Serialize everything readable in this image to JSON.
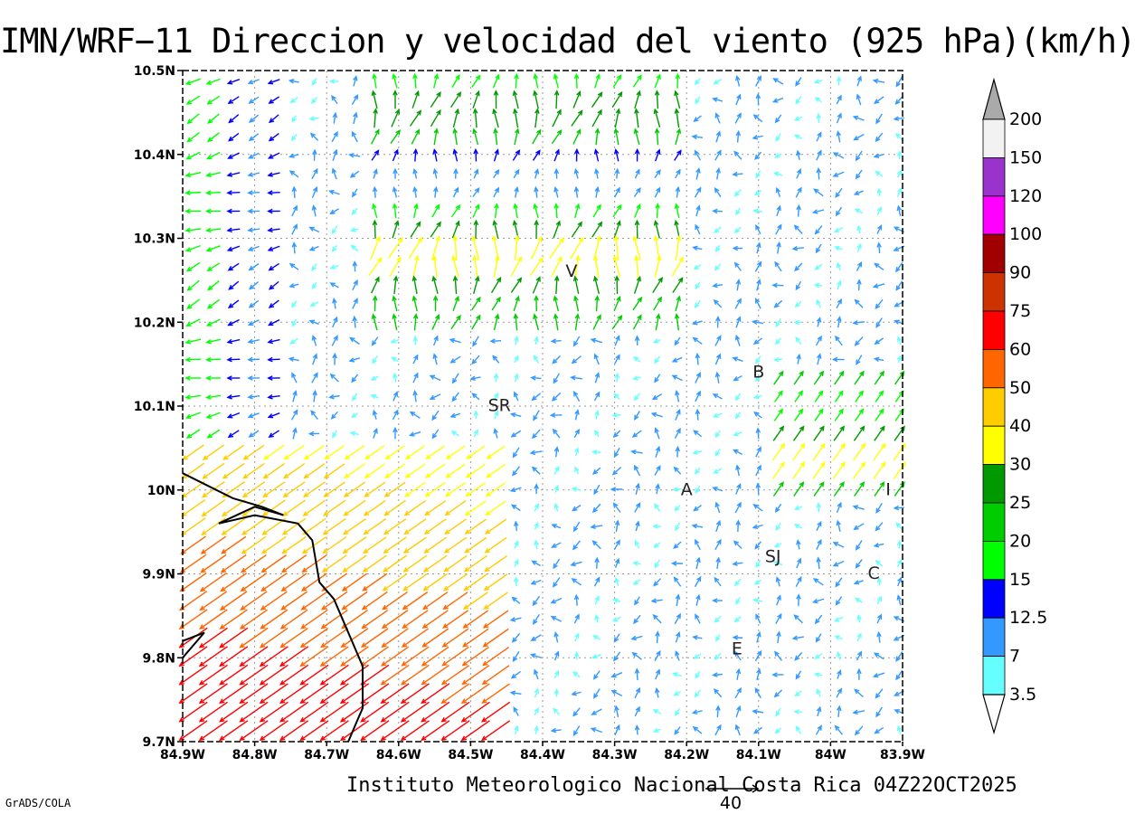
{
  "title": "IMN/WRF−11 Direccion y velocidad del viento (925 hPa)(km/h)",
  "credit": "Instituto Meteorologico Nacional Costa Rica 04Z22OCT2025",
  "software": "GrADS/COLA",
  "reference_vector": {
    "label": "40"
  },
  "colorbar": {
    "labels": [
      "200",
      "150",
      "120",
      "100",
      "90",
      "75",
      "60",
      "50",
      "40",
      "30",
      "25",
      "20",
      "15",
      "12.5",
      "7",
      "3.5"
    ],
    "colors": [
      "#F2F2F2",
      "#9933CC",
      "#FF00FF",
      "#A00000",
      "#CC3300",
      "#FF0000",
      "#FF6600",
      "#FFCC00",
      "#FFFF00",
      "#009900",
      "#00CC00",
      "#00FF00",
      "#0000FF",
      "#3399FF",
      "#66FFFF"
    ],
    "bottom_arrow": "#FFFFFF",
    "top_arrow": "#AAAAAA"
  },
  "axes": {
    "x_ticks": [
      "84.9W",
      "84.8W",
      "84.7W",
      "84.6W",
      "84.5W",
      "84.4W",
      "84.3W",
      "84.2W",
      "84.1W",
      "84W",
      "83.9W"
    ],
    "y_ticks": [
      "10.5N",
      "10.4N",
      "10.3N",
      "10.2N",
      "10.1N",
      "10N",
      "9.9N",
      "9.8N",
      "9.7N"
    ],
    "lon_range": [
      -84.9,
      -83.9
    ],
    "lat_range": [
      9.7,
      10.5
    ]
  },
  "places": [
    {
      "label": "V",
      "lon": -84.36,
      "lat": 10.26
    },
    {
      "label": "B",
      "lon": -84.1,
      "lat": 10.14
    },
    {
      "label": "SR",
      "lon": -84.46,
      "lat": 10.1
    },
    {
      "label": "A",
      "lon": -84.2,
      "lat": 10.0
    },
    {
      "label": "I",
      "lon": -83.92,
      "lat": 10.0
    },
    {
      "label": "SJ",
      "lon": -84.08,
      "lat": 9.92
    },
    {
      "label": "C",
      "lon": -83.94,
      "lat": 9.9
    },
    {
      "label": "E",
      "lon": -84.13,
      "lat": 9.81
    }
  ],
  "coastline": {
    "main": [
      [
        -84.9,
        10.02
      ],
      [
        -84.83,
        9.99
      ],
      [
        -84.79,
        9.98
      ],
      [
        -84.76,
        9.97
      ],
      [
        -84.8,
        9.98
      ],
      [
        -84.85,
        9.96
      ],
      [
        -84.8,
        9.97
      ],
      [
        -84.74,
        9.96
      ],
      [
        -84.72,
        9.94
      ],
      [
        -84.71,
        9.89
      ],
      [
        -84.69,
        9.87
      ],
      [
        -84.67,
        9.83
      ],
      [
        -84.65,
        9.79
      ],
      [
        -84.65,
        9.74
      ],
      [
        -84.66,
        9.72
      ],
      [
        -84.67,
        9.7
      ]
    ],
    "peninsula": [
      [
        -84.9,
        9.82
      ],
      [
        -84.87,
        9.83
      ],
      [
        -84.9,
        9.8
      ]
    ]
  }
}
